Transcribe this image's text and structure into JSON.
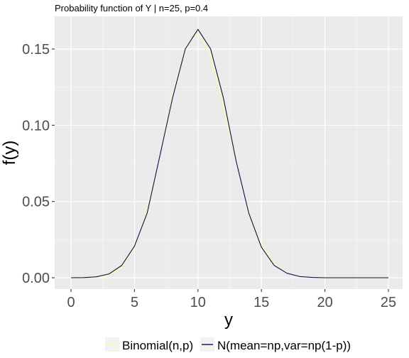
{
  "chart_data": {
    "type": "line",
    "title": "Probability function of Y | n=25, p=0.4",
    "xlabel": "y",
    "ylabel": "f(y)",
    "xlim": [
      0,
      25
    ],
    "ylim": [
      0,
      0.165
    ],
    "x_ticks": [
      0,
      5,
      10,
      15,
      20,
      25
    ],
    "y_ticks": [
      0.0,
      0.05,
      0.1,
      0.15
    ],
    "y_tick_labels": [
      "0.00",
      "0.05",
      "0.10",
      "0.15"
    ],
    "grid": true,
    "legend_position": "bottom",
    "x": [
      0,
      1,
      2,
      3,
      4,
      5,
      6,
      7,
      8,
      9,
      10,
      11,
      12,
      13,
      14,
      15,
      16,
      17,
      18,
      19,
      20,
      21,
      22,
      23,
      24,
      25
    ],
    "series": [
      {
        "name": "Binomial(n,p)",
        "color": "#ffff99",
        "values": [
          0.0,
          0.0,
          0.0004,
          0.0019,
          0.0071,
          0.0199,
          0.0442,
          0.08,
          0.12,
          0.1511,
          0.1612,
          0.1465,
          0.114,
          0.076,
          0.0434,
          0.0212,
          0.0088,
          0.0031,
          0.0009,
          0.0002,
          0.0,
          0.0,
          0.0,
          0.0,
          0.0,
          0.0
        ]
      },
      {
        "name": "N(mean=np,var=np(1-p))",
        "color": "#0a0a60",
        "values": [
          0.0,
          0.0001,
          0.0006,
          0.0025,
          0.0081,
          0.0207,
          0.0425,
          0.08,
          0.118,
          0.15,
          0.1629,
          0.15,
          0.118,
          0.0767,
          0.0425,
          0.02,
          0.0081,
          0.003,
          0.0008,
          0.0002,
          0.0,
          0.0,
          0.0,
          0.0,
          0.0,
          0.0
        ]
      }
    ]
  }
}
